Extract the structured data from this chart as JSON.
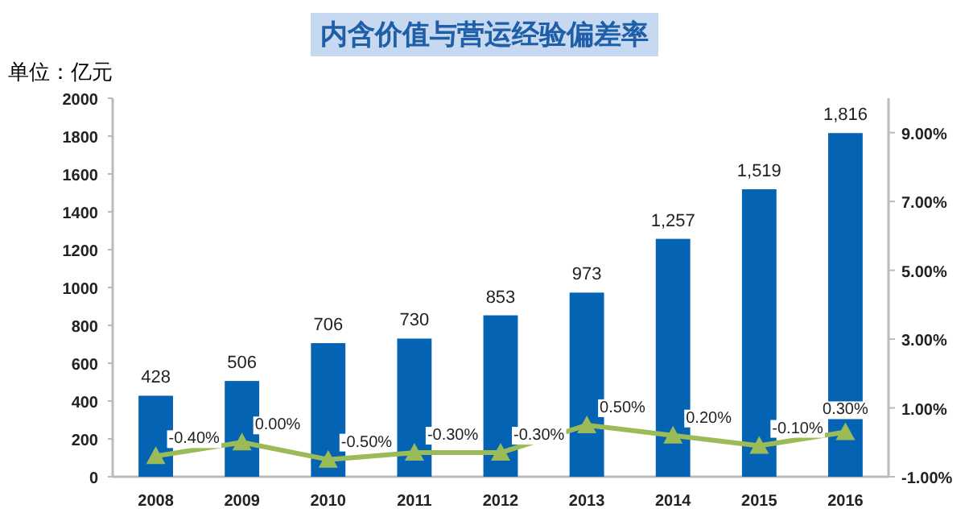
{
  "chart_data": {
    "type": "bar",
    "title": "内含价值与营运经验偏差率",
    "ylabel": "单位：亿元",
    "categories": [
      "2008",
      "2009",
      "2010",
      "2011",
      "2012",
      "2013",
      "2014",
      "2015",
      "2016"
    ],
    "series": [
      {
        "color": "#0563b4",
        "values": [
          428,
          506,
          706,
          730,
          853,
          973,
          1257,
          1519,
          1816
        ],
        "value_labels": [
          "428",
          "506",
          "706",
          "730",
          "853",
          "973",
          "1,257",
          "1,519",
          "1,816"
        ]
      },
      {
        "type": "line",
        "axis": "y2",
        "color": "#9bbb59",
        "marker": "triangle",
        "values": [
          -0.4,
          0.0,
          -0.5,
          -0.3,
          -0.3,
          0.5,
          0.2,
          -0.1,
          0.3
        ],
        "value_labels": [
          "-0.40%",
          "0.00%",
          "-0.50%",
          "-0.30%",
          "-0.30%",
          "0.50%",
          "0.20%",
          "-0.10%",
          "0.30%"
        ]
      }
    ],
    "ylim": [
      0,
      2000
    ],
    "yticks": [
      0,
      200,
      400,
      600,
      800,
      1000,
      1200,
      1400,
      1600,
      1800,
      2000
    ],
    "y2lim": [
      -1,
      10
    ],
    "y2ticks": [
      {
        "value": -1,
        "label": "-1.00%"
      },
      {
        "value": 1,
        "label": "1.00%"
      },
      {
        "value": 3,
        "label": "3.00%"
      },
      {
        "value": 5,
        "label": "5.00%"
      },
      {
        "value": 7,
        "label": "7.00%"
      },
      {
        "value": 9,
        "label": "9.00%"
      }
    ],
    "grid": false
  }
}
